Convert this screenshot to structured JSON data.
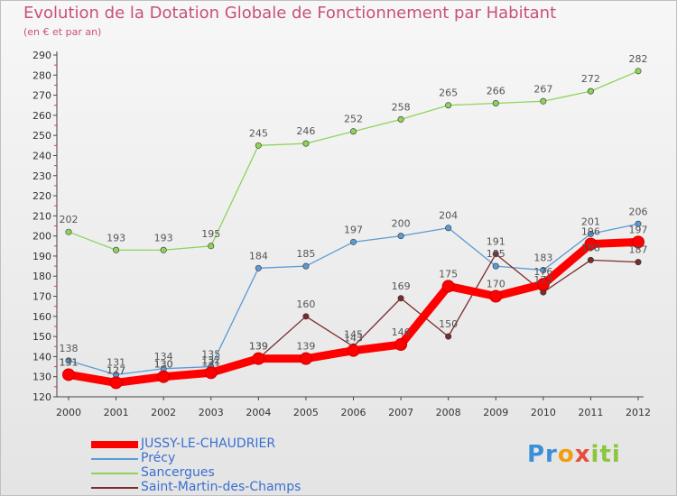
{
  "title": "Evolution de la Dotation Globale de Fonctionnement par Habitant",
  "subtitle": "(en € et par an)",
  "logo": {
    "p": "Pr",
    "o": "o",
    "x": "x",
    "i": "iti"
  },
  "chart_data": {
    "type": "line",
    "title": "Evolution de la Dotation Globale de Fonctionnement par Habitant",
    "subtitle": "(en € et par an)",
    "xlabel": "",
    "ylabel": "",
    "ylim": [
      120,
      290
    ],
    "yticks": [
      120,
      130,
      140,
      150,
      160,
      170,
      180,
      190,
      200,
      210,
      220,
      230,
      240,
      250,
      260,
      270,
      280,
      290
    ],
    "grid": false,
    "legend_position": "bottom-left",
    "categories": [
      "2000",
      "2001",
      "2002",
      "2003",
      "2004",
      "2005",
      "2006",
      "2007",
      "2008",
      "2009",
      "2010",
      "2011",
      "2012"
    ],
    "series": [
      {
        "name": "Sancergues",
        "color": "#8fd35a",
        "values": [
          202,
          193,
          193,
          195,
          245,
          246,
          252,
          258,
          265,
          266,
          267,
          272,
          282
        ]
      },
      {
        "name": "Précy",
        "color": "#5b9bd5",
        "values": [
          138,
          131,
          134,
          135,
          184,
          185,
          197,
          200,
          204,
          185,
          183,
          201,
          206
        ]
      },
      {
        "name": "Saint-Martin-des-Champs",
        "color": "#7b2c2c",
        "values": [
          131,
          127,
          130,
          131,
          139,
          160,
          145,
          169,
          150,
          191,
          172,
          188,
          187
        ]
      },
      {
        "name": "JUSSY-LE-CHAUDRIER",
        "color": "#ff0000",
        "values": [
          131,
          127,
          130,
          132,
          139,
          139,
          143,
          146,
          175,
          170,
          176,
          196,
          197
        ]
      }
    ],
    "legend": [
      "JUSSY-LE-CHAUDRIER",
      "Précy",
      "Sancergues",
      "Saint-Martin-des-Champs"
    ]
  }
}
